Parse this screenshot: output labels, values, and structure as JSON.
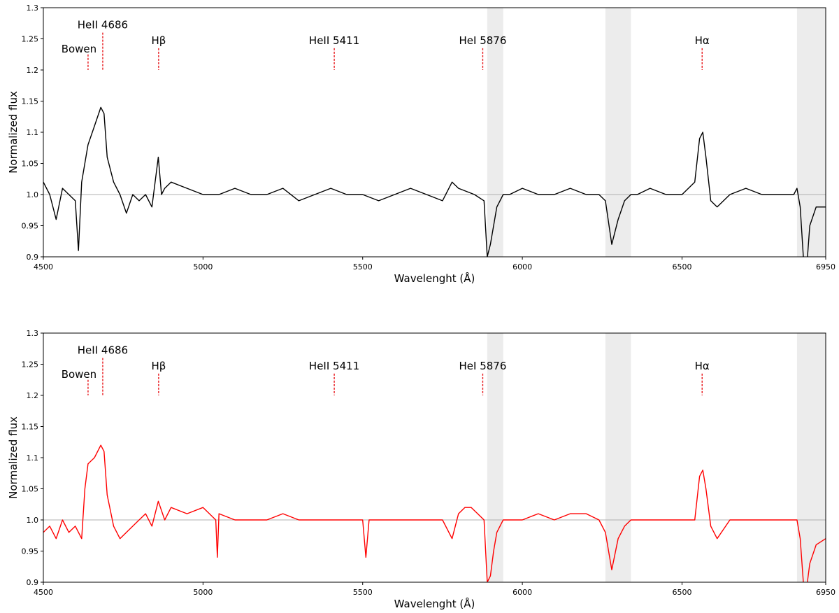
{
  "chart_data": [
    {
      "type": "line",
      "xlabel": "Wavelenght (Å)",
      "ylabel": "Normalized flux",
      "xlim": [
        4500,
        6950
      ],
      "ylim": [
        0.9,
        1.3
      ],
      "xticks": [
        4500,
        5000,
        5500,
        6000,
        6500,
        6950
      ],
      "xtick_labels": [
        "4500",
        "5000",
        "5500",
        "6000",
        "6500",
        "6950"
      ],
      "yticks": [
        0.9,
        0.95,
        1.0,
        1.05,
        1.1,
        1.15,
        1.2,
        1.25,
        1.3
      ],
      "ytick_labels": [
        "0.9",
        "0.95",
        "1.0",
        "1.05",
        "1.1",
        "1.15",
        "1.2",
        "1.25",
        "1.3"
      ],
      "reference_line": 1.0,
      "line_color": "#000000",
      "shaded_bands": [
        [
          5890,
          5940
        ],
        [
          6260,
          6340
        ],
        [
          6860,
          6950
        ]
      ],
      "line_markers": [
        {
          "label": "Bowen",
          "wavelength": 4640,
          "y_top": 1.225,
          "y_bottom": 1.2
        },
        {
          "label": "HeII 4686",
          "wavelength": 4686,
          "y_top": 1.26,
          "y_bottom": 1.2
        },
        {
          "label": "Hβ",
          "wavelength": 4861,
          "y_top": 1.235,
          "y_bottom": 1.2
        },
        {
          "label": "HeII 5411",
          "wavelength": 5411,
          "y_top": 1.235,
          "y_bottom": 1.2
        },
        {
          "label": "HeI 5876",
          "wavelength": 5876,
          "y_top": 1.235,
          "y_bottom": 1.2
        },
        {
          "label": "Hα",
          "wavelength": 6563,
          "y_top": 1.235,
          "y_bottom": 1.2
        }
      ],
      "series": [
        {
          "x": [
            4500,
            4520,
            4540,
            4560,
            4580,
            4600,
            4610,
            4620,
            4640,
            4660,
            4680,
            4690,
            4700,
            4720,
            4740,
            4760,
            4780,
            4800,
            4820,
            4840,
            4860,
            4870,
            4880,
            4900,
            4950,
            5000,
            5050,
            5100,
            5150,
            5200,
            5250,
            5300,
            5350,
            5400,
            5450,
            5500,
            5550,
            5600,
            5650,
            5700,
            5750,
            5780,
            5800,
            5850,
            5880,
            5890,
            5900,
            5910,
            5920,
            5940,
            5960,
            6000,
            6050,
            6100,
            6150,
            6200,
            6240,
            6260,
            6280,
            6300,
            6320,
            6340,
            6360,
            6400,
            6450,
            6500,
            6540,
            6555,
            6565,
            6575,
            6590,
            6610,
            6650,
            6700,
            6750,
            6800,
            6850,
            6860,
            6870,
            6880,
            6890,
            6900,
            6920,
            6950
          ],
          "values": [
            1.02,
            1.0,
            0.96,
            1.01,
            1.0,
            0.99,
            0.91,
            1.02,
            1.08,
            1.11,
            1.14,
            1.13,
            1.06,
            1.02,
            1.0,
            0.97,
            1.0,
            0.99,
            1.0,
            0.98,
            1.06,
            1.0,
            1.01,
            1.02,
            1.01,
            1.0,
            1.0,
            1.01,
            1.0,
            1.0,
            1.01,
            0.99,
            1.0,
            1.01,
            1.0,
            1.0,
            0.99,
            1.0,
            1.01,
            1.0,
            0.99,
            1.02,
            1.01,
            1.0,
            0.99,
            0.9,
            0.92,
            0.95,
            0.98,
            1.0,
            1.0,
            1.01,
            1.0,
            1.0,
            1.01,
            1.0,
            1.0,
            0.99,
            0.92,
            0.96,
            0.99,
            1.0,
            1.0,
            1.01,
            1.0,
            1.0,
            1.02,
            1.09,
            1.1,
            1.06,
            0.99,
            0.98,
            1.0,
            1.01,
            1.0,
            1.0,
            1.0,
            1.01,
            0.98,
            0.9,
            0.88,
            0.95,
            0.98,
            0.98
          ]
        }
      ]
    },
    {
      "type": "line",
      "xlabel": "Wavelenght (Å)",
      "ylabel": "Normalized flux",
      "xlim": [
        4500,
        6950
      ],
      "ylim": [
        0.9,
        1.3
      ],
      "xticks": [
        4500,
        5000,
        5500,
        6000,
        6500,
        6950
      ],
      "xtick_labels": [
        "4500",
        "5000",
        "5500",
        "6000",
        "6500",
        "6950"
      ],
      "yticks": [
        0.9,
        0.95,
        1.0,
        1.05,
        1.1,
        1.15,
        1.2,
        1.25,
        1.3
      ],
      "ytick_labels": [
        "0.9",
        "0.95",
        "1.0",
        "1.05",
        "1.1",
        "1.15",
        "1.2",
        "1.25",
        "1.3"
      ],
      "reference_line": 1.0,
      "line_color": "#ff0000",
      "shaded_bands": [
        [
          5890,
          5940
        ],
        [
          6260,
          6340
        ],
        [
          6860,
          6950
        ]
      ],
      "line_markers": [
        {
          "label": "Bowen",
          "wavelength": 4640,
          "y_top": 1.225,
          "y_bottom": 1.2
        },
        {
          "label": "HeII 4686",
          "wavelength": 4686,
          "y_top": 1.26,
          "y_bottom": 1.2
        },
        {
          "label": "Hβ",
          "wavelength": 4861,
          "y_top": 1.235,
          "y_bottom": 1.2
        },
        {
          "label": "HeII 5411",
          "wavelength": 5411,
          "y_top": 1.235,
          "y_bottom": 1.2
        },
        {
          "label": "HeI 5876",
          "wavelength": 5876,
          "y_top": 1.235,
          "y_bottom": 1.2
        },
        {
          "label": "Hα",
          "wavelength": 6563,
          "y_top": 1.235,
          "y_bottom": 1.2
        }
      ],
      "series": [
        {
          "x": [
            4500,
            4520,
            4540,
            4560,
            4580,
            4600,
            4620,
            4630,
            4640,
            4660,
            4680,
            4690,
            4700,
            4720,
            4740,
            4760,
            4780,
            4800,
            4820,
            4840,
            4860,
            4880,
            4900,
            4950,
            5000,
            5040,
            5045,
            5050,
            5100,
            5150,
            5200,
            5250,
            5300,
            5350,
            5400,
            5450,
            5500,
            5510,
            5520,
            5550,
            5600,
            5650,
            5700,
            5750,
            5780,
            5800,
            5820,
            5840,
            5860,
            5880,
            5890,
            5900,
            5910,
            5920,
            5940,
            5960,
            6000,
            6050,
            6100,
            6150,
            6200,
            6240,
            6260,
            6280,
            6300,
            6320,
            6340,
            6360,
            6400,
            6450,
            6500,
            6540,
            6555,
            6565,
            6575,
            6590,
            6610,
            6650,
            6700,
            6750,
            6800,
            6850,
            6860,
            6870,
            6880,
            6890,
            6900,
            6920,
            6950
          ],
          "values": [
            0.98,
            0.99,
            0.97,
            1.0,
            0.98,
            0.99,
            0.97,
            1.05,
            1.09,
            1.1,
            1.12,
            1.11,
            1.04,
            0.99,
            0.97,
            0.98,
            0.99,
            1.0,
            1.01,
            0.99,
            1.03,
            1.0,
            1.02,
            1.01,
            1.02,
            1.0,
            0.94,
            1.01,
            1.0,
            1.0,
            1.0,
            1.01,
            1.0,
            1.0,
            1.0,
            1.0,
            1.0,
            0.94,
            1.0,
            1.0,
            1.0,
            1.0,
            1.0,
            1.0,
            0.97,
            1.01,
            1.02,
            1.02,
            1.01,
            1.0,
            0.9,
            0.91,
            0.95,
            0.98,
            1.0,
            1.0,
            1.0,
            1.01,
            1.0,
            1.01,
            1.01,
            1.0,
            0.98,
            0.92,
            0.97,
            0.99,
            1.0,
            1.0,
            1.0,
            1.0,
            1.0,
            1.0,
            1.07,
            1.08,
            1.05,
            0.99,
            0.97,
            1.0,
            1.0,
            1.0,
            1.0,
            1.0,
            1.0,
            0.97,
            0.9,
            0.89,
            0.93,
            0.96,
            0.97
          ]
        }
      ]
    }
  ]
}
